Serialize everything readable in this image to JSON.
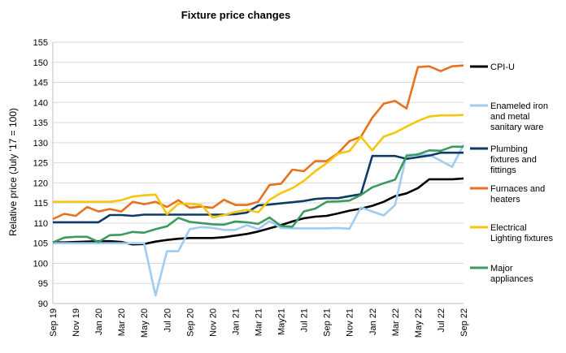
{
  "chart_data": {
    "type": "line",
    "title": "Fixture price changes",
    "ylabel": "Relative price (July '17 = 100)",
    "xlabel": "",
    "ylim": [
      90,
      155
    ],
    "yticks": [
      90,
      95,
      100,
      105,
      110,
      115,
      120,
      125,
      130,
      135,
      140,
      145,
      150,
      155
    ],
    "grid": "horizontal",
    "legend_position": "right",
    "x": [
      "Sep 19",
      "Oct 19",
      "Nov 19",
      "Dec 19",
      "Jan 20",
      "Feb 20",
      "Mar 20",
      "Apr 20",
      "May 20",
      "Jun 20",
      "Jul 20",
      "Aug 20",
      "Sep 20",
      "Oct 20",
      "Nov 20",
      "Dec 20",
      "Jan 21",
      "Feb 21",
      "Mar 21",
      "Apr 21",
      "May 21",
      "Jun 21",
      "Jul 21",
      "Aug 21",
      "Sep 21",
      "Oct 21",
      "Nov 21",
      "Dec 21",
      "Jan 22",
      "Feb 22",
      "Mar 22",
      "Apr 22",
      "May 22",
      "Jun 22",
      "Jul 22",
      "Aug 22",
      "Sep 22"
    ],
    "xtick_labels": [
      "Sep 19",
      "Nov 19",
      "Jan 20",
      "Mar 20",
      "May 20",
      "Jul 20",
      "Sep 20",
      "Nov 20",
      "Jan 21",
      "Mar 21",
      "May21",
      "Jul 21",
      "Sep 21",
      "Nov 21",
      "Jan 22",
      "Mar 22",
      "May 22",
      "Jul 22",
      "Sep 22"
    ],
    "series": [
      {
        "name": "CPI-U",
        "color": "#000000",
        "values": [
          105.2,
          105.2,
          105.3,
          105.4,
          105.5,
          105.5,
          105.3,
          104.7,
          104.8,
          105.4,
          105.8,
          106.1,
          106.3,
          106.3,
          106.3,
          106.5,
          106.9,
          107.3,
          107.9,
          108.7,
          109.5,
          110.4,
          111.2,
          111.6,
          111.8,
          112.4,
          113.1,
          113.6,
          114.3,
          115.3,
          116.7,
          117.4,
          118.7,
          120.9,
          120.9,
          120.9,
          121.1
        ]
      },
      {
        "name": "Enameled iron and metal sanitary ware",
        "color": "#9fccf0",
        "values": [
          105.0,
          105.0,
          105.0,
          105.0,
          105.0,
          105.0,
          105.0,
          105.0,
          105.0,
          92.0,
          103.0,
          103.0,
          108.5,
          109.0,
          108.8,
          108.3,
          108.3,
          109.5,
          108.5,
          110.5,
          108.8,
          108.7,
          108.7,
          108.7,
          108.7,
          108.8,
          108.6,
          113.9,
          112.9,
          111.9,
          114.5,
          127.0,
          127.0,
          127.0,
          125.5,
          124.0,
          129.5
        ]
      },
      {
        "name": "Plumbing fixtures and fittings",
        "color": "#0d3b66",
        "values": [
          110.2,
          110.2,
          110.2,
          110.2,
          110.2,
          112.0,
          112.0,
          111.8,
          112.1,
          112.1,
          112.1,
          112.1,
          112.1,
          112.1,
          112.1,
          112.1,
          112.2,
          112.6,
          114.4,
          114.6,
          114.9,
          115.2,
          115.5,
          116.0,
          116.2,
          116.2,
          116.7,
          117.2,
          126.7,
          126.7,
          126.7,
          126.0,
          126.4,
          126.8,
          127.5,
          127.5,
          127.5
        ]
      },
      {
        "name": "Furnaces and heaters",
        "color": "#e8711e",
        "values": [
          111.0,
          112.3,
          111.8,
          114.0,
          112.9,
          113.5,
          112.9,
          115.3,
          114.7,
          115.3,
          114.0,
          115.7,
          113.8,
          114.1,
          113.8,
          115.8,
          114.5,
          114.5,
          115.3,
          119.5,
          119.8,
          123.3,
          122.9,
          125.4,
          125.4,
          127.4,
          130.4,
          131.5,
          136.2,
          139.7,
          140.4,
          138.5,
          148.8,
          149.0,
          147.8,
          149.0,
          149.2
        ]
      },
      {
        "name": "Electrical Lighting fixtures",
        "color": "#f5c60e",
        "values": [
          115.3,
          115.3,
          115.3,
          115.3,
          115.3,
          115.3,
          115.7,
          116.6,
          116.9,
          117.1,
          112.2,
          114.8,
          114.8,
          114.5,
          111.4,
          112.0,
          112.8,
          113.3,
          112.7,
          115.8,
          117.5,
          118.7,
          120.5,
          122.9,
          124.9,
          127.3,
          127.9,
          131.5,
          128.1,
          131.5,
          132.5,
          134.0,
          135.4,
          136.5,
          136.8,
          136.8,
          136.9
        ]
      },
      {
        "name": "Major appliances",
        "color": "#3a9a5f",
        "values": [
          105.2,
          106.4,
          106.6,
          106.6,
          105.3,
          107.0,
          107.1,
          107.8,
          107.6,
          108.5,
          109.2,
          111.3,
          110.3,
          110.0,
          109.7,
          109.6,
          110.4,
          110.2,
          109.8,
          111.4,
          109.3,
          109.1,
          112.9,
          113.6,
          115.3,
          115.4,
          115.6,
          117.0,
          118.9,
          119.9,
          120.8,
          126.7,
          127.1,
          128.1,
          128.0,
          129.0,
          129.0
        ]
      }
    ]
  }
}
